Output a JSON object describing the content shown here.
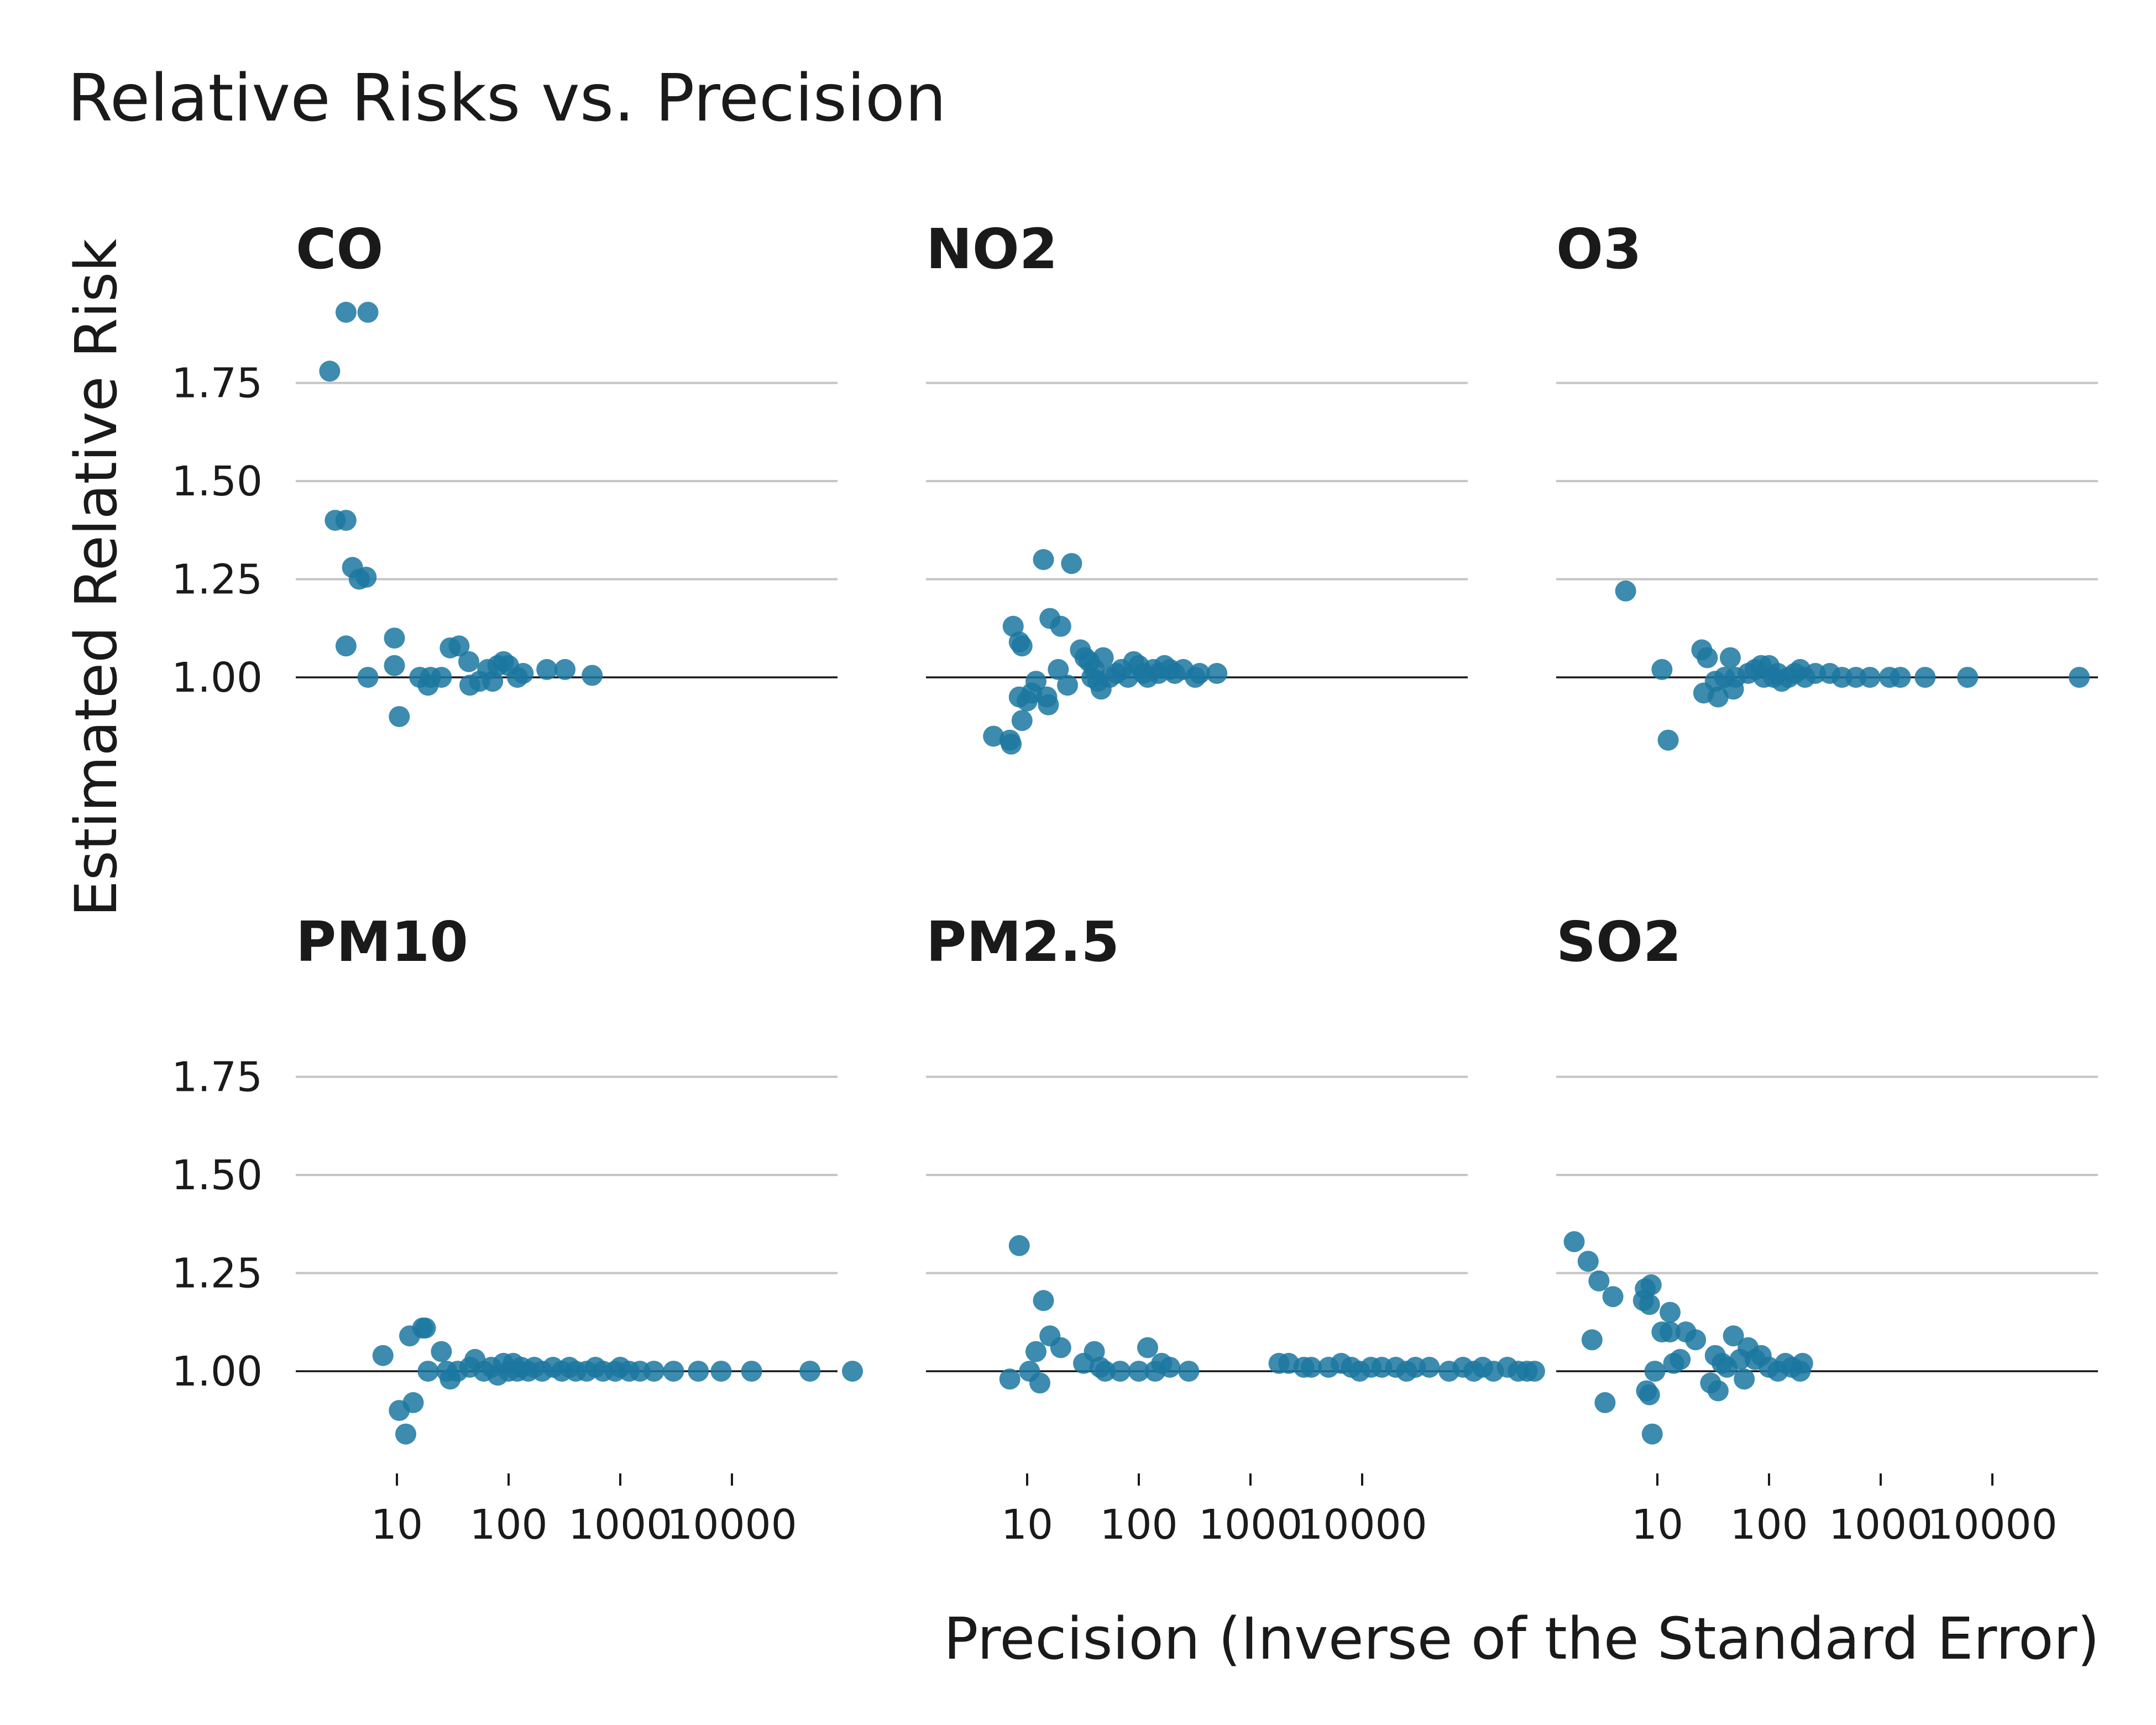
{
  "chart_data": {
    "type": "scatter",
    "title": "Relative Risks vs. Precision",
    "xlabel": "Precision (Inverse of the Standard Error)",
    "ylabel": "Estimated Relative Risk",
    "x_scale": "log10",
    "xlim": [
      1.2,
      500000
    ],
    "ylim": [
      0.81,
      2.0
    ],
    "x_ticks": [
      10,
      100,
      1000,
      10000
    ],
    "x_tick_labels": [
      "10",
      "100",
      "1000",
      "10000"
    ],
    "y_ticks": [
      1.0,
      1.25,
      1.5,
      1.75
    ],
    "y_tick_labels": [
      "1.00",
      "1.25",
      "1.50",
      "1.75"
    ],
    "reference_line": 1.0,
    "grid": "horizontal",
    "point_color": "#1b77a0",
    "panels": [
      {
        "name": "CO",
        "points": [
          [
            2.5,
            1.78
          ],
          [
            3.5,
            1.93
          ],
          [
            5.5,
            1.93
          ],
          [
            2.8,
            1.4
          ],
          [
            3.5,
            1.4
          ],
          [
            4.0,
            1.28
          ],
          [
            4.6,
            1.25
          ],
          [
            5.3,
            1.255
          ],
          [
            3.5,
            1.08
          ],
          [
            5.5,
            1.0
          ],
          [
            9.5,
            1.1
          ],
          [
            9.5,
            1.03
          ],
          [
            10.5,
            0.9
          ],
          [
            16,
            1.0
          ],
          [
            19,
            0.98
          ],
          [
            20,
            1.0
          ],
          [
            25,
            1.0
          ],
          [
            30,
            1.075
          ],
          [
            36,
            1.08
          ],
          [
            44,
            1.04
          ],
          [
            45,
            0.98
          ],
          [
            55,
            0.99
          ],
          [
            65,
            1.02
          ],
          [
            72,
            0.99
          ],
          [
            80,
            1.03
          ],
          [
            90,
            1.04
          ],
          [
            100,
            1.03
          ],
          [
            120,
            1.0
          ],
          [
            135,
            1.01
          ],
          [
            220,
            1.02
          ],
          [
            320,
            1.02
          ],
          [
            560,
            1.005
          ]
        ]
      },
      {
        "name": "NO2",
        "points": [
          [
            5,
            0.85
          ],
          [
            7,
            0.84
          ],
          [
            7.2,
            0.83
          ],
          [
            7.5,
            1.13
          ],
          [
            8.5,
            1.09
          ],
          [
            9,
            1.08
          ],
          [
            8.5,
            0.95
          ],
          [
            9,
            0.89
          ],
          [
            10,
            0.94
          ],
          [
            11,
            0.96
          ],
          [
            12,
            0.99
          ],
          [
            14,
            1.3
          ],
          [
            16,
            1.15
          ],
          [
            15,
            0.95
          ],
          [
            15.5,
            0.93
          ],
          [
            19,
            1.02
          ],
          [
            20,
            1.13
          ],
          [
            23,
            0.98
          ],
          [
            25,
            1.29
          ],
          [
            30,
            1.07
          ],
          [
            33,
            1.05
          ],
          [
            36,
            1.04
          ],
          [
            38,
            1.0
          ],
          [
            40,
            1.02
          ],
          [
            43,
            0.99
          ],
          [
            46,
            0.97
          ],
          [
            48,
            1.05
          ],
          [
            55,
            1.0
          ],
          [
            63,
            1.01
          ],
          [
            70,
            1.02
          ],
          [
            80,
            1.0
          ],
          [
            90,
            1.04
          ],
          [
            100,
            1.03
          ],
          [
            110,
            1.01
          ],
          [
            120,
            1.0
          ],
          [
            135,
            1.02
          ],
          [
            150,
            1.01
          ],
          [
            170,
            1.03
          ],
          [
            190,
            1.02
          ],
          [
            210,
            1.01
          ],
          [
            250,
            1.02
          ],
          [
            320,
            1.0
          ],
          [
            350,
            1.01
          ],
          [
            500,
            1.01
          ]
        ]
      },
      {
        "name": "O3",
        "points": [
          [
            5.2,
            1.22
          ],
          [
            11,
            1.02
          ],
          [
            12.5,
            0.84
          ],
          [
            25,
            1.07
          ],
          [
            26,
            0.96
          ],
          [
            28,
            1.05
          ],
          [
            33,
            0.99
          ],
          [
            35,
            0.95
          ],
          [
            40,
            1.0
          ],
          [
            45,
            1.05
          ],
          [
            48,
            0.97
          ],
          [
            50,
            1.0
          ],
          [
            65,
            1.01
          ],
          [
            75,
            1.02
          ],
          [
            85,
            1.03
          ],
          [
            90,
            1.0
          ],
          [
            100,
            1.03
          ],
          [
            110,
            1.0
          ],
          [
            120,
            1.01
          ],
          [
            130,
            0.99
          ],
          [
            150,
            1.0
          ],
          [
            170,
            1.01
          ],
          [
            190,
            1.02
          ],
          [
            210,
            1.0
          ],
          [
            260,
            1.01
          ],
          [
            350,
            1.01
          ],
          [
            450,
            1.0
          ],
          [
            600,
            1.0
          ],
          [
            800,
            1.0
          ],
          [
            1200,
            1.0
          ],
          [
            1500,
            1.0
          ],
          [
            2500,
            1.0
          ],
          [
            6000,
            1.0
          ],
          [
            60000,
            1.0
          ]
        ]
      },
      {
        "name": "PM10",
        "points": [
          [
            7.5,
            1.04
          ],
          [
            10.5,
            0.9
          ],
          [
            12,
            0.84
          ],
          [
            13,
            1.09
          ],
          [
            14,
            0.92
          ],
          [
            17,
            1.11
          ],
          [
            18,
            1.11
          ],
          [
            19,
            1.0
          ],
          [
            25,
            1.05
          ],
          [
            28,
            1.0
          ],
          [
            30,
            0.98
          ],
          [
            35,
            1.0
          ],
          [
            45,
            1.01
          ],
          [
            50,
            1.03
          ],
          [
            60,
            1.0
          ],
          [
            70,
            1.01
          ],
          [
            80,
            0.99
          ],
          [
            90,
            1.02
          ],
          [
            100,
            1.0
          ],
          [
            110,
            1.02
          ],
          [
            120,
            1.0
          ],
          [
            130,
            1.01
          ],
          [
            150,
            1.0
          ],
          [
            170,
            1.01
          ],
          [
            200,
            1.0
          ],
          [
            250,
            1.01
          ],
          [
            300,
            1.0
          ],
          [
            350,
            1.01
          ],
          [
            400,
            1.0
          ],
          [
            500,
            1.0
          ],
          [
            600,
            1.01
          ],
          [
            700,
            1.0
          ],
          [
            900,
            1.0
          ],
          [
            1000,
            1.01
          ],
          [
            1200,
            1.0
          ],
          [
            1500,
            1.0
          ],
          [
            2000,
            1.0
          ],
          [
            3000,
            1.0
          ],
          [
            5000,
            1.0
          ],
          [
            8000,
            1.0
          ],
          [
            15000,
            1.0
          ],
          [
            50000,
            1.0
          ],
          [
            120000,
            1.0
          ]
        ]
      },
      {
        "name": "PM2.5",
        "points": [
          [
            7,
            0.98
          ],
          [
            8.5,
            1.32
          ],
          [
            10.5,
            1.0
          ],
          [
            12,
            1.05
          ],
          [
            13,
            0.97
          ],
          [
            14,
            1.18
          ],
          [
            16,
            1.09
          ],
          [
            20,
            1.06
          ],
          [
            32,
            1.02
          ],
          [
            40,
            1.05
          ],
          [
            45,
            1.01
          ],
          [
            50,
            1.0
          ],
          [
            68,
            1.0
          ],
          [
            100,
            1.0
          ],
          [
            120,
            1.06
          ],
          [
            140,
            1.0
          ],
          [
            160,
            1.02
          ],
          [
            190,
            1.01
          ],
          [
            280,
            1.0
          ],
          [
            1800,
            1.02
          ],
          [
            2200,
            1.02
          ],
          [
            3000,
            1.01
          ],
          [
            3500,
            1.01
          ],
          [
            5000,
            1.01
          ],
          [
            6500,
            1.02
          ],
          [
            8000,
            1.01
          ],
          [
            9500,
            1.0
          ],
          [
            12000,
            1.01
          ],
          [
            15000,
            1.01
          ],
          [
            20000,
            1.01
          ],
          [
            25000,
            1.0
          ],
          [
            30000,
            1.01
          ],
          [
            40000,
            1.01
          ],
          [
            60000,
            1.0
          ],
          [
            80000,
            1.01
          ],
          [
            100000,
            1.0
          ],
          [
            120000,
            1.01
          ],
          [
            150000,
            1.0
          ],
          [
            200000,
            1.01
          ],
          [
            250000,
            1.0
          ],
          [
            300000,
            1.0
          ],
          [
            350000,
            1.0
          ]
        ]
      },
      {
        "name": "SO2",
        "points": [
          [
            1.8,
            1.33
          ],
          [
            2.4,
            1.28
          ],
          [
            2.6,
            1.08
          ],
          [
            3.0,
            1.23
          ],
          [
            3.4,
            0.92
          ],
          [
            4.0,
            1.19
          ],
          [
            7.5,
            1.18
          ],
          [
            7.8,
            1.21
          ],
          [
            8,
            0.95
          ],
          [
            8.5,
            1.17
          ],
          [
            8.8,
            1.22
          ],
          [
            8.5,
            0.94
          ],
          [
            9,
            0.84
          ],
          [
            9.5,
            1.0
          ],
          [
            11,
            1.1
          ],
          [
            13,
            1.15
          ],
          [
            13,
            1.1
          ],
          [
            14,
            1.02
          ],
          [
            16,
            1.03
          ],
          [
            18,
            1.1
          ],
          [
            22,
            1.08
          ],
          [
            30,
            0.97
          ],
          [
            33,
            1.04
          ],
          [
            35,
            0.95
          ],
          [
            38,
            1.02
          ],
          [
            42,
            1.01
          ],
          [
            48,
            1.09
          ],
          [
            55,
            1.03
          ],
          [
            60,
            0.98
          ],
          [
            65,
            1.06
          ],
          [
            75,
            1.03
          ],
          [
            85,
            1.04
          ],
          [
            100,
            1.01
          ],
          [
            120,
            1.0
          ],
          [
            140,
            1.02
          ],
          [
            160,
            1.01
          ],
          [
            190,
            1.0
          ],
          [
            200,
            1.02
          ]
        ]
      }
    ]
  }
}
